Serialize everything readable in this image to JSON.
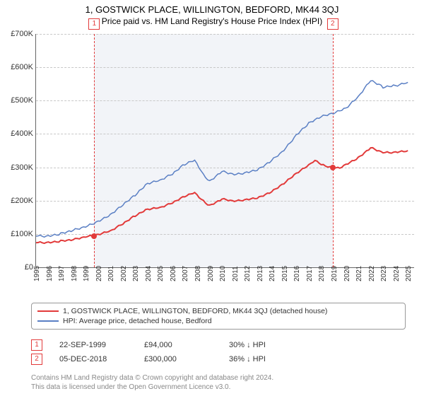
{
  "title": "1, GOSTWICK PLACE, WILLINGTON, BEDFORD, MK44 3QJ",
  "subtitle": "Price paid vs. HM Land Registry's House Price Index (HPI)",
  "chart": {
    "type": "line",
    "xlim": [
      1995,
      2025.5
    ],
    "ylim": [
      0,
      700000
    ],
    "ytick_step": 100000,
    "yticks": [
      "£0",
      "£100K",
      "£200K",
      "£300K",
      "£400K",
      "£500K",
      "£600K",
      "£700K"
    ],
    "xticks": [
      1995,
      1996,
      1997,
      1998,
      1999,
      2000,
      2001,
      2002,
      2003,
      2004,
      2005,
      2006,
      2007,
      2008,
      2009,
      2010,
      2011,
      2012,
      2013,
      2014,
      2015,
      2016,
      2017,
      2018,
      2019,
      2020,
      2021,
      2022,
      2023,
      2024,
      2025
    ],
    "background_color": "#f2f4f8",
    "grid_color": "#c8c8c8",
    "series": [
      {
        "name": "property",
        "color": "#e23a3a",
        "width": 2,
        "data": [
          [
            1995,
            75000
          ],
          [
            1996,
            74000
          ],
          [
            1997,
            78000
          ],
          [
            1998,
            82000
          ],
          [
            1999,
            90000
          ],
          [
            1999.7,
            94000
          ],
          [
            2000,
            97000
          ],
          [
            2001,
            108000
          ],
          [
            2002,
            130000
          ],
          [
            2003,
            155000
          ],
          [
            2004,
            175000
          ],
          [
            2005,
            180000
          ],
          [
            2006,
            195000
          ],
          [
            2007,
            215000
          ],
          [
            2007.8,
            225000
          ],
          [
            2008.5,
            200000
          ],
          [
            2009,
            185000
          ],
          [
            2010,
            205000
          ],
          [
            2011,
            198000
          ],
          [
            2012,
            202000
          ],
          [
            2013,
            208000
          ],
          [
            2014,
            225000
          ],
          [
            2015,
            250000
          ],
          [
            2016,
            280000
          ],
          [
            2017,
            305000
          ],
          [
            2017.5,
            320000
          ],
          [
            2018,
            310000
          ],
          [
            2018.9,
            300000
          ],
          [
            2019.5,
            300000
          ],
          [
            2020,
            310000
          ],
          [
            2021,
            330000
          ],
          [
            2022,
            360000
          ],
          [
            2023,
            345000
          ],
          [
            2024,
            345000
          ],
          [
            2025,
            350000
          ]
        ]
      },
      {
        "name": "hpi",
        "color": "#5a7fc4",
        "width": 1.5,
        "data": [
          [
            1995,
            95000
          ],
          [
            1996,
            93000
          ],
          [
            1997,
            100000
          ],
          [
            1998,
            110000
          ],
          [
            1999,
            120000
          ],
          [
            2000,
            135000
          ],
          [
            2001,
            155000
          ],
          [
            2002,
            185000
          ],
          [
            2003,
            215000
          ],
          [
            2004,
            250000
          ],
          [
            2005,
            260000
          ],
          [
            2006,
            280000
          ],
          [
            2007,
            310000
          ],
          [
            2007.8,
            320000
          ],
          [
            2008.5,
            280000
          ],
          [
            2009,
            260000
          ],
          [
            2010,
            290000
          ],
          [
            2011,
            280000
          ],
          [
            2012,
            285000
          ],
          [
            2013,
            295000
          ],
          [
            2014,
            320000
          ],
          [
            2015,
            350000
          ],
          [
            2016,
            395000
          ],
          [
            2017,
            430000
          ],
          [
            2018,
            450000
          ],
          [
            2019,
            460000
          ],
          [
            2020,
            475000
          ],
          [
            2021,
            510000
          ],
          [
            2022,
            560000
          ],
          [
            2023,
            540000
          ],
          [
            2024,
            545000
          ],
          [
            2025,
            555000
          ]
        ]
      }
    ],
    "markers": [
      {
        "id": "1",
        "x": 1999.7,
        "y": 94000
      },
      {
        "id": "2",
        "x": 2018.93,
        "y": 300000
      }
    ]
  },
  "legend": [
    {
      "color": "#e23a3a",
      "label": "1, GOSTWICK PLACE, WILLINGTON, BEDFORD, MK44 3QJ (detached house)"
    },
    {
      "color": "#5a7fc4",
      "label": "HPI: Average price, detached house, Bedford"
    }
  ],
  "annotations": [
    {
      "id": "1",
      "date": "22-SEP-1999",
      "price": "£94,000",
      "pct": "30%",
      "arrow": "↓",
      "suffix": "HPI"
    },
    {
      "id": "2",
      "date": "05-DEC-2018",
      "price": "£300,000",
      "pct": "36%",
      "arrow": "↓",
      "suffix": "HPI"
    }
  ],
  "footer": {
    "line1": "Contains HM Land Registry data © Crown copyright and database right 2024.",
    "line2": "This data is licensed under the Open Government Licence v3.0."
  }
}
